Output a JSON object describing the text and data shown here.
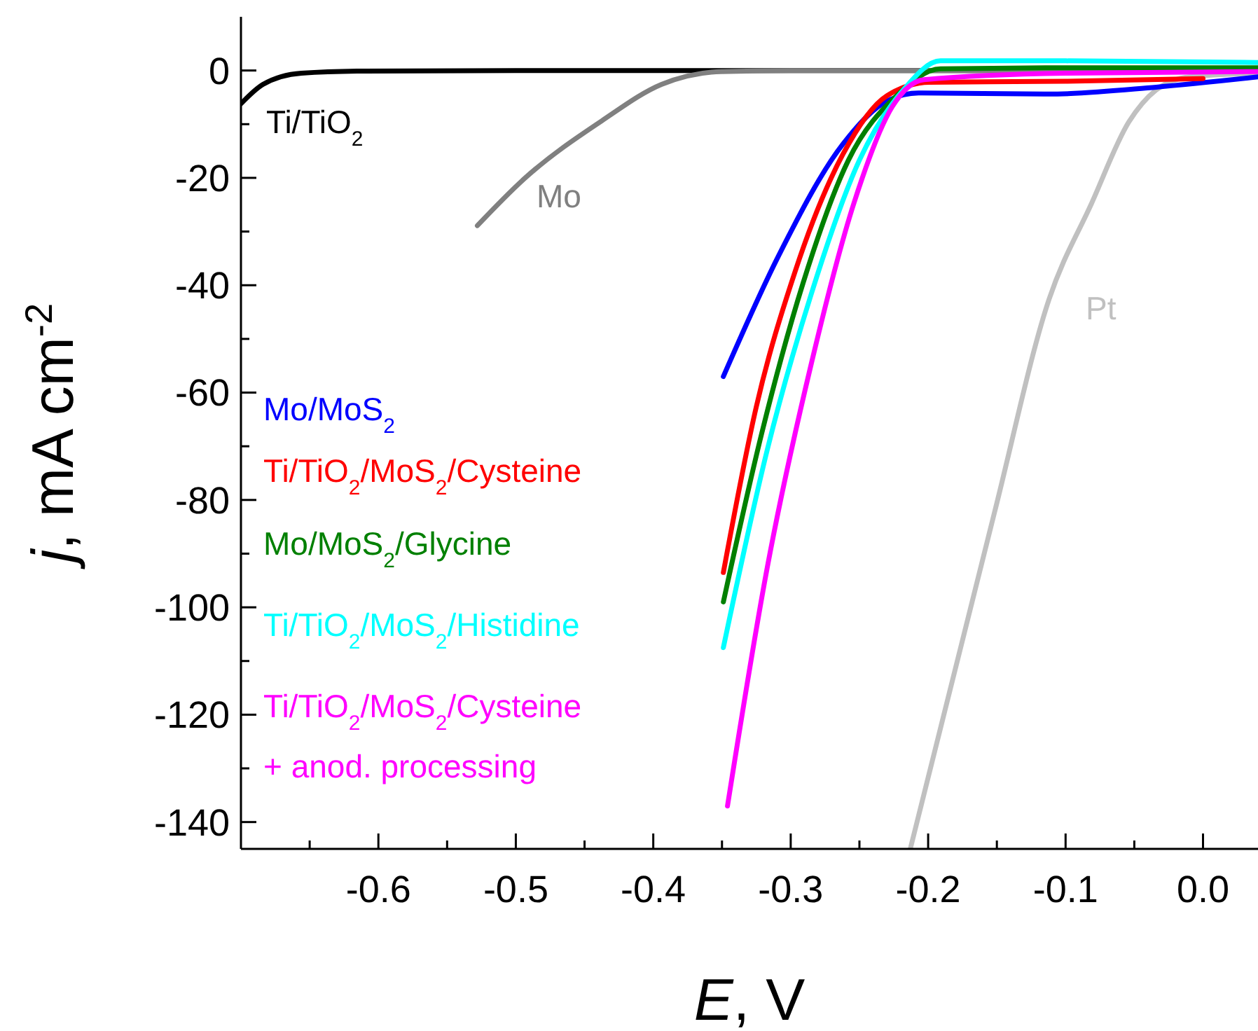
{
  "chart_data": {
    "type": "line",
    "xlabel": "E, V",
    "ylabel": "j, mA cm$^{-2}$",
    "xlim": [
      -0.7,
      0.04
    ],
    "ylim": [
      -145,
      10
    ],
    "xticks": [
      {
        "value": -0.65,
        "label": null
      },
      -0.6,
      {
        "value": -0.55,
        "label": null
      },
      -0.5,
      {
        "value": -0.45,
        "label": null
      },
      -0.4,
      {
        "value": -0.35,
        "label": null
      },
      -0.3,
      {
        "value": -0.25,
        "label": null
      },
      -0.2,
      {
        "value": -0.15,
        "label": null
      },
      -0.1,
      {
        "value": -0.05,
        "label": null
      },
      {
        "value": 0,
        "label": "0.0"
      }
    ],
    "yticks": [
      0,
      {
        "value": -10,
        "label": null
      },
      -20,
      {
        "value": -30,
        "label": null
      },
      -40,
      {
        "value": -50,
        "label": null
      },
      -60,
      {
        "value": -70,
        "label": null
      },
      -80,
      {
        "value": -90,
        "label": null
      },
      -100,
      {
        "value": -110,
        "label": null
      },
      -120,
      {
        "value": -130,
        "label": null
      },
      -140
    ],
    "grid": false,
    "line_style": "solid",
    "marker": "none",
    "series": [
      {
        "name": "Ti/TiO$_{2}$",
        "color": "#000000",
        "x": [
          -0.7,
          -0.684,
          -0.656,
          -0.61,
          -0.5,
          -0.3,
          -0.1,
          0.04
        ],
        "values": [
          -6.2,
          -2.6,
          -0.5,
          -0.1,
          0,
          0,
          0,
          0
        ]
      },
      {
        "name": "Mo",
        "color": "#808080",
        "x": [
          -0.528,
          -0.494,
          -0.437,
          -0.394,
          -0.351,
          -0.3,
          -0.2,
          0.04
        ],
        "values": [
          -28.9,
          -20.2,
          -9.3,
          -2.6,
          -0.2,
          0,
          0,
          0
        ]
      },
      {
        "name": "Pt",
        "color": "#c0c0c0",
        "x": [
          -0.213,
          -0.152,
          -0.112,
          -0.081,
          -0.054,
          -0.034,
          -0.01,
          0.04
        ],
        "values": [
          -145,
          -82.6,
          -42.6,
          -24.7,
          -9.6,
          -3.6,
          -1.2,
          -0.5
        ]
      },
      {
        "name": "Mo/MoS$_{2}$",
        "color": "#0000ff",
        "x": [
          -0.349,
          -0.309,
          -0.262,
          -0.23,
          -0.207,
          -0.113,
          -0.034,
          0.04
        ],
        "values": [
          -57,
          -34.6,
          -13.7,
          -5.7,
          -4.2,
          -4.4,
          -3.1,
          -1.2
        ]
      },
      {
        "name": "Ti/TiO$_{2}$/MoS$_{2}$/Cysteine",
        "color": "#ff0000",
        "x": [
          -0.349,
          -0.325,
          -0.297,
          -0.262,
          -0.23,
          -0.199,
          -0.1,
          0
        ],
        "values": [
          -93.5,
          -62.6,
          -37.6,
          -15.6,
          -4.7,
          -2.2,
          -2,
          -1.5
        ]
      },
      {
        "name": "Mo/MoS$_{2}$/Glycine",
        "color": "#008000",
        "x": [
          -0.349,
          -0.321,
          -0.291,
          -0.258,
          -0.223,
          -0.191,
          -0.1,
          0.04
        ],
        "values": [
          -99,
          -67.5,
          -39.6,
          -16.7,
          -4.7,
          0.3,
          0.5,
          0.5
        ]
      },
      {
        "name": "Ti/TiO$_{2}$/MoS$_{2}$/Histidine",
        "color": "#00ffff",
        "x": [
          -0.349,
          -0.317,
          -0.285,
          -0.25,
          -0.218,
          -0.191,
          -0.1,
          0.04
        ],
        "values": [
          -107.5,
          -70.6,
          -41.6,
          -16.7,
          -3.6,
          1.8,
          1.8,
          1.5
        ]
      },
      {
        "name": "Ti/TiO$_{2}$/MoS$_{2}$/Cysteine\n+ anod. processing",
        "color": "#ff00ff",
        "x": [
          -0.346,
          -0.317,
          -0.285,
          -0.254,
          -0.226,
          -0.203,
          -0.1,
          0.04
        ],
        "values": [
          -137,
          -92.5,
          -54.6,
          -24.7,
          -6.7,
          -1.7,
          -0.5,
          -0.2
        ]
      }
    ]
  }
}
